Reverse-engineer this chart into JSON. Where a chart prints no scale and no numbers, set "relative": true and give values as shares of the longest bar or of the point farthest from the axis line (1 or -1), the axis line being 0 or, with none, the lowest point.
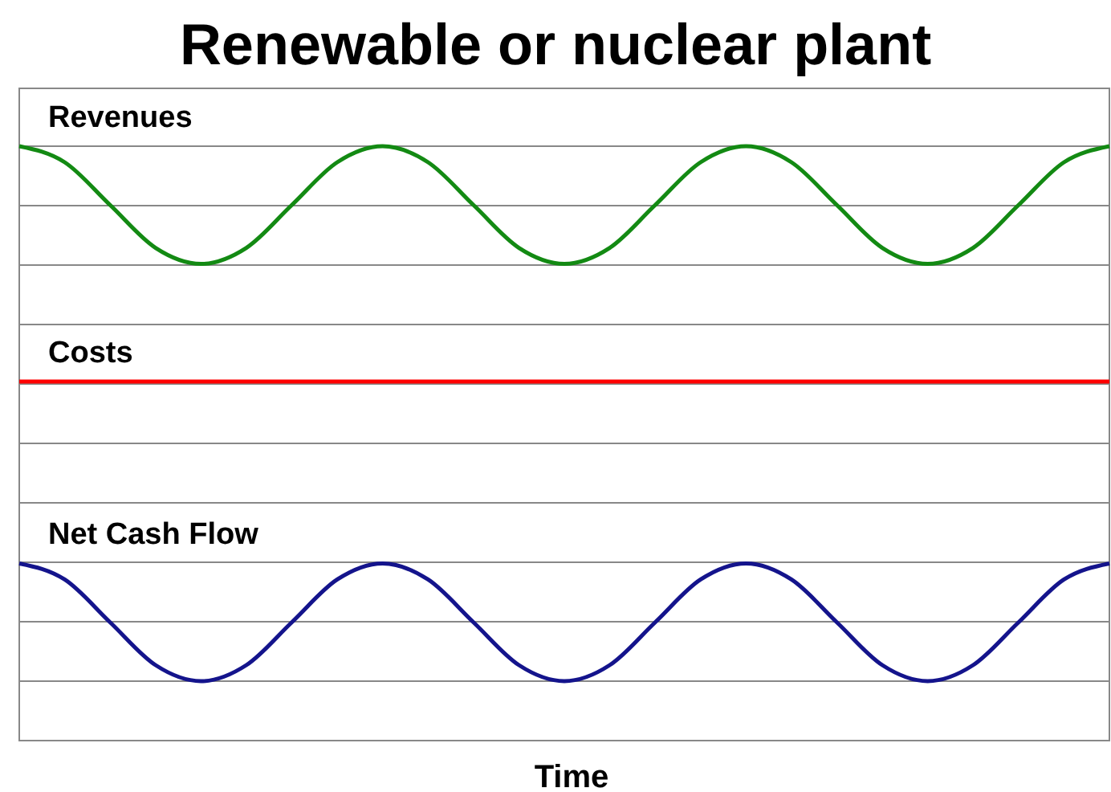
{
  "chart_data": {
    "type": "line",
    "title": "Renewable or nuclear plant",
    "xlabel": "Time",
    "relative": true,
    "grid": "y",
    "legend": false,
    "line_style": "solid",
    "marker": "none",
    "categories": [
      null,
      null,
      null,
      null,
      null,
      null,
      null,
      null,
      null,
      null,
      null,
      null,
      null,
      null,
      null,
      null,
      null,
      null,
      null,
      null,
      null,
      null,
      null,
      null,
      null
    ],
    "series": [
      {
        "name": "Revenues",
        "color": "#138a13",
        "values": [
          1,
          0.97,
          0.89,
          0.81,
          0.78,
          0.81,
          0.89,
          0.97,
          1,
          0.97,
          0.89,
          0.81,
          0.78,
          0.81,
          0.89,
          0.97,
          1,
          0.97,
          0.89,
          0.81,
          0.78,
          0.81,
          0.89,
          0.97,
          1
        ]
      },
      {
        "name": "Costs",
        "color": "#ff0000",
        "values": [
          0.56,
          0.56,
          0.56,
          0.56,
          0.56,
          0.56,
          0.56,
          0.56,
          0.56,
          0.56,
          0.56,
          0.56,
          0.56,
          0.56,
          0.56,
          0.56,
          0.56,
          0.56,
          0.56,
          0.56,
          0.56,
          0.56,
          0.56,
          0.56,
          0.56
        ]
      },
      {
        "name": "Net Cash Flow",
        "color": "#14148c",
        "values": [
          0.22,
          0.19,
          0.11,
          0.03,
          0,
          0.03,
          0.11,
          0.19,
          0.22,
          0.19,
          0.11,
          0.03,
          0,
          0.03,
          0.11,
          0.19,
          0.22,
          0.19,
          0.11,
          0.03,
          0,
          0.03,
          0.11,
          0.19,
          0.22
        ]
      }
    ]
  }
}
